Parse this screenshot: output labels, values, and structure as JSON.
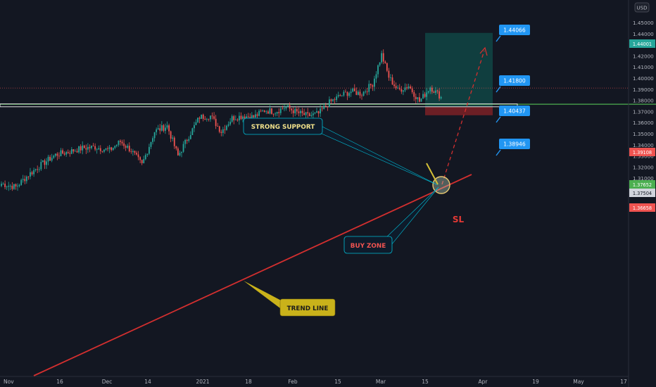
{
  "currency": "USD",
  "colors": {
    "background": "#131722",
    "up": "#26a69a",
    "down": "#ef5350",
    "trend_line": "#d32f2f",
    "support_box": "#e0e0e0",
    "horizontal_green": "#4caf50",
    "profit_zone": "#0d6e63",
    "loss_zone": "#c62828",
    "target_label": "#2196f3",
    "callout_strong_support": "#0e1b2b",
    "callout_buy_zone": "#0e1b2b",
    "callout_trend_line": "#c9b21a",
    "sl_text": "#e53935"
  },
  "annotations": {
    "strong_support": "STRONG SUPPORT",
    "buy_zone": "BUY ZONE",
    "trend_line": "TREND LINE",
    "sl": "SL"
  },
  "target_labels": [
    "1.44066",
    "1.41800",
    "1.40437",
    "1.38946"
  ],
  "price_badges": {
    "top_green": "1.44001",
    "current_red": "1.39108",
    "green_line": "1.37652",
    "grey_line": "1.37504",
    "stop_loss": "1.36658"
  },
  "chart_data": {
    "type": "candlestick",
    "title": "",
    "xlabel": "",
    "ylabel": "",
    "ylim": [
      1.291,
      1.457
    ],
    "x_ticks": [
      "Nov",
      "16",
      "Dec",
      "14",
      "2021",
      "18",
      "Feb",
      "15",
      "Mar",
      "15",
      "Apr",
      "19",
      "May",
      "17"
    ],
    "y_ticks": [
      "1.45000",
      "1.44000",
      "1.43000",
      "1.42000",
      "1.41000",
      "1.40000",
      "1.39000",
      "1.38000",
      "1.37000",
      "1.36000",
      "1.35000",
      "1.34000",
      "1.33000",
      "1.32000",
      "1.31000",
      "1.30000"
    ],
    "grid": false,
    "approx_close_path": [
      {
        "bar": 0,
        "close": 1.305
      },
      {
        "bar": 8,
        "close": 1.302
      },
      {
        "bar": 15,
        "close": 1.313
      },
      {
        "bar": 22,
        "close": 1.322
      },
      {
        "bar": 30,
        "close": 1.331
      },
      {
        "bar": 38,
        "close": 1.334
      },
      {
        "bar": 45,
        "close": 1.337
      },
      {
        "bar": 52,
        "close": 1.338
      },
      {
        "bar": 60,
        "close": 1.335
      },
      {
        "bar": 66,
        "close": 1.343
      },
      {
        "bar": 72,
        "close": 1.335
      },
      {
        "bar": 78,
        "close": 1.322
      },
      {
        "bar": 85,
        "close": 1.352
      },
      {
        "bar": 92,
        "close": 1.357
      },
      {
        "bar": 98,
        "close": 1.33
      },
      {
        "bar": 104,
        "close": 1.348
      },
      {
        "bar": 110,
        "close": 1.365
      },
      {
        "bar": 116,
        "close": 1.366
      },
      {
        "bar": 122,
        "close": 1.352
      },
      {
        "bar": 128,
        "close": 1.364
      },
      {
        "bar": 134,
        "close": 1.366
      },
      {
        "bar": 140,
        "close": 1.365
      },
      {
        "bar": 146,
        "close": 1.371
      },
      {
        "bar": 152,
        "close": 1.37
      },
      {
        "bar": 158,
        "close": 1.374
      },
      {
        "bar": 164,
        "close": 1.369
      },
      {
        "bar": 170,
        "close": 1.366
      },
      {
        "bar": 176,
        "close": 1.368
      },
      {
        "bar": 182,
        "close": 1.378
      },
      {
        "bar": 188,
        "close": 1.384
      },
      {
        "bar": 194,
        "close": 1.388
      },
      {
        "bar": 200,
        "close": 1.386
      },
      {
        "bar": 206,
        "close": 1.395
      },
      {
        "bar": 211,
        "close": 1.421
      },
      {
        "bar": 215,
        "close": 1.401
      },
      {
        "bar": 220,
        "close": 1.389
      },
      {
        "bar": 226,
        "close": 1.393
      },
      {
        "bar": 232,
        "close": 1.379
      },
      {
        "bar": 238,
        "close": 1.392
      },
      {
        "bar": 244,
        "close": 1.383
      }
    ],
    "trend_line": {
      "from": {
        "bar": 0,
        "price": 1.287
      },
      "to": {
        "bar": 270,
        "price": 1.381
      }
    },
    "levels": {
      "support_box": [
        1.3742,
        1.3768
      ],
      "horizontal_green": 1.37652,
      "current": 1.39108,
      "take_profit": 1.44066,
      "stop_loss": 1.36658,
      "targets": [
        1.44066,
        1.418,
        1.40437,
        1.38946
      ]
    }
  }
}
